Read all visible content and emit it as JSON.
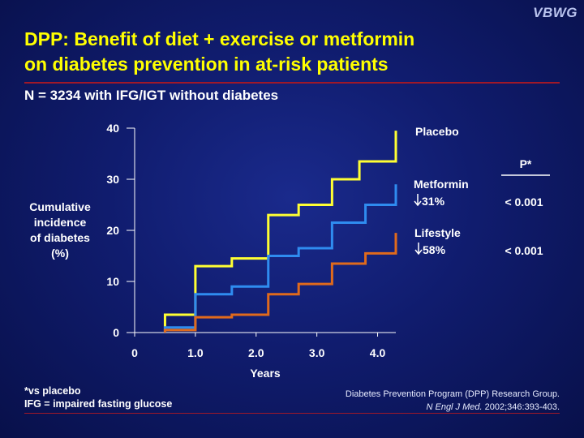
{
  "logo": "VBWG",
  "title_line1": "DPP: Benefit of diet + exercise or metformin",
  "title_line2": "on diabetes prevention in at-risk patients",
  "subtitle": "N = 3234 with IFG/IGT without diabetes",
  "footnote_line1": "*vs placebo",
  "footnote_line2": "IFG = impaired fasting glucose",
  "citation_line1": "Diabetes Prevention Program (DPP) Research Group.",
  "citation_journal": "N Engl J Med.",
  "citation_rest": " 2002;346:393-403.",
  "colors": {
    "title": "#ffff00",
    "placebo": "#ffff33",
    "metformin": "#2f8cf0",
    "lifestyle": "#e06a1c",
    "rule": "#a01828"
  },
  "chart_data": {
    "type": "line",
    "step": true,
    "xlabel": "Years",
    "ylabel": "Cumulative\nincidence\nof diabetes\n(%)",
    "xlim": [
      0,
      4.3
    ],
    "ylim": [
      0,
      40
    ],
    "xticks": [
      0,
      1.0,
      2.0,
      3.0,
      4.0
    ],
    "xtick_labels": [
      "0",
      "1.0",
      "2.0",
      "3.0",
      "4.0"
    ],
    "yticks": [
      0,
      10,
      20,
      30,
      40
    ],
    "ytick_labels": [
      "0",
      "10",
      "20",
      "30",
      "40"
    ],
    "p_header": "P*",
    "series": [
      {
        "name": "Placebo",
        "label_line1": "Placebo",
        "label_line2": "",
        "p_value": "",
        "color_key": "placebo",
        "x": [
          0.5,
          1.0,
          1.6,
          2.2,
          2.7,
          3.25,
          3.7,
          4.3
        ],
        "y": [
          3.5,
          13,
          14.5,
          23,
          25,
          30,
          33.5,
          39.5
        ]
      },
      {
        "name": "Metformin",
        "label_line1": "Metformin",
        "label_line2": "31%",
        "p_value": "< 0.001",
        "color_key": "metformin",
        "x": [
          0.5,
          1.0,
          1.6,
          2.2,
          2.7,
          3.25,
          3.8,
          4.3
        ],
        "y": [
          1.0,
          7.5,
          9.0,
          15,
          16.5,
          21.5,
          25,
          29
        ]
      },
      {
        "name": "Lifestyle",
        "label_line1": "Lifestyle",
        "label_line2": "58%",
        "p_value": "< 0.001",
        "color_key": "lifestyle",
        "x": [
          0.5,
          1.0,
          1.6,
          2.2,
          2.7,
          3.25,
          3.8,
          4.3
        ],
        "y": [
          0.5,
          3,
          3.5,
          7.5,
          9.5,
          13.5,
          15.5,
          19.5
        ]
      }
    ]
  }
}
